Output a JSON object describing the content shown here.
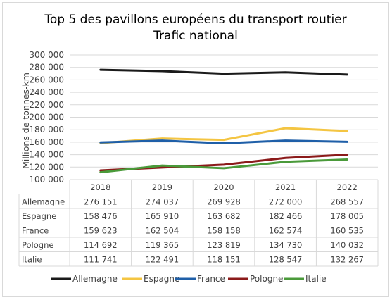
{
  "chart_data": {
    "type": "line",
    "title": [
      "Top 5 des pavillons européens du transport routier",
      "Trafic national"
    ],
    "ylabel": "Millions de tonnes-km",
    "ylim": [
      100000,
      300000
    ],
    "yticks": [
      "100 000",
      "120 000",
      "140 000",
      "160 000",
      "180 000",
      "200 000",
      "220 000",
      "240 000",
      "260 000",
      "280 000",
      "300 000"
    ],
    "categories": [
      "2018",
      "2019",
      "2020",
      "2021",
      "2022"
    ],
    "grid": true,
    "legend_position": "bottom",
    "series": [
      {
        "name": "Allemagne",
        "color": "#1a1a1a",
        "values": [
          276151,
          274037,
          269928,
          272000,
          268557
        ],
        "labels": [
          "276 151",
          "274 037",
          "269 928",
          "272 000",
          "268 557"
        ]
      },
      {
        "name": "Espagne",
        "color": "#f4c542",
        "values": [
          158476,
          165910,
          163682,
          182466,
          178005
        ],
        "labels": [
          "158 476",
          "165 910",
          "163 682",
          "182 466",
          "178 005"
        ]
      },
      {
        "name": "France",
        "color": "#1f5fa8",
        "values": [
          159623,
          162504,
          158158,
          162574,
          160535
        ],
        "labels": [
          "159 623",
          "162 504",
          "158 158",
          "162 574",
          "160 535"
        ]
      },
      {
        "name": "Pologne",
        "color": "#8b1a1a",
        "values": [
          114692,
          119365,
          123819,
          134730,
          140032
        ],
        "labels": [
          "114 692",
          "119 365",
          "123 819",
          "134 730",
          "140 032"
        ]
      },
      {
        "name": "Italie",
        "color": "#4a9a3a",
        "values": [
          111741,
          122491,
          118151,
          128547,
          132267
        ],
        "labels": [
          "111 741",
          "122 491",
          "118 151",
          "128 547",
          "132 267"
        ]
      }
    ]
  }
}
